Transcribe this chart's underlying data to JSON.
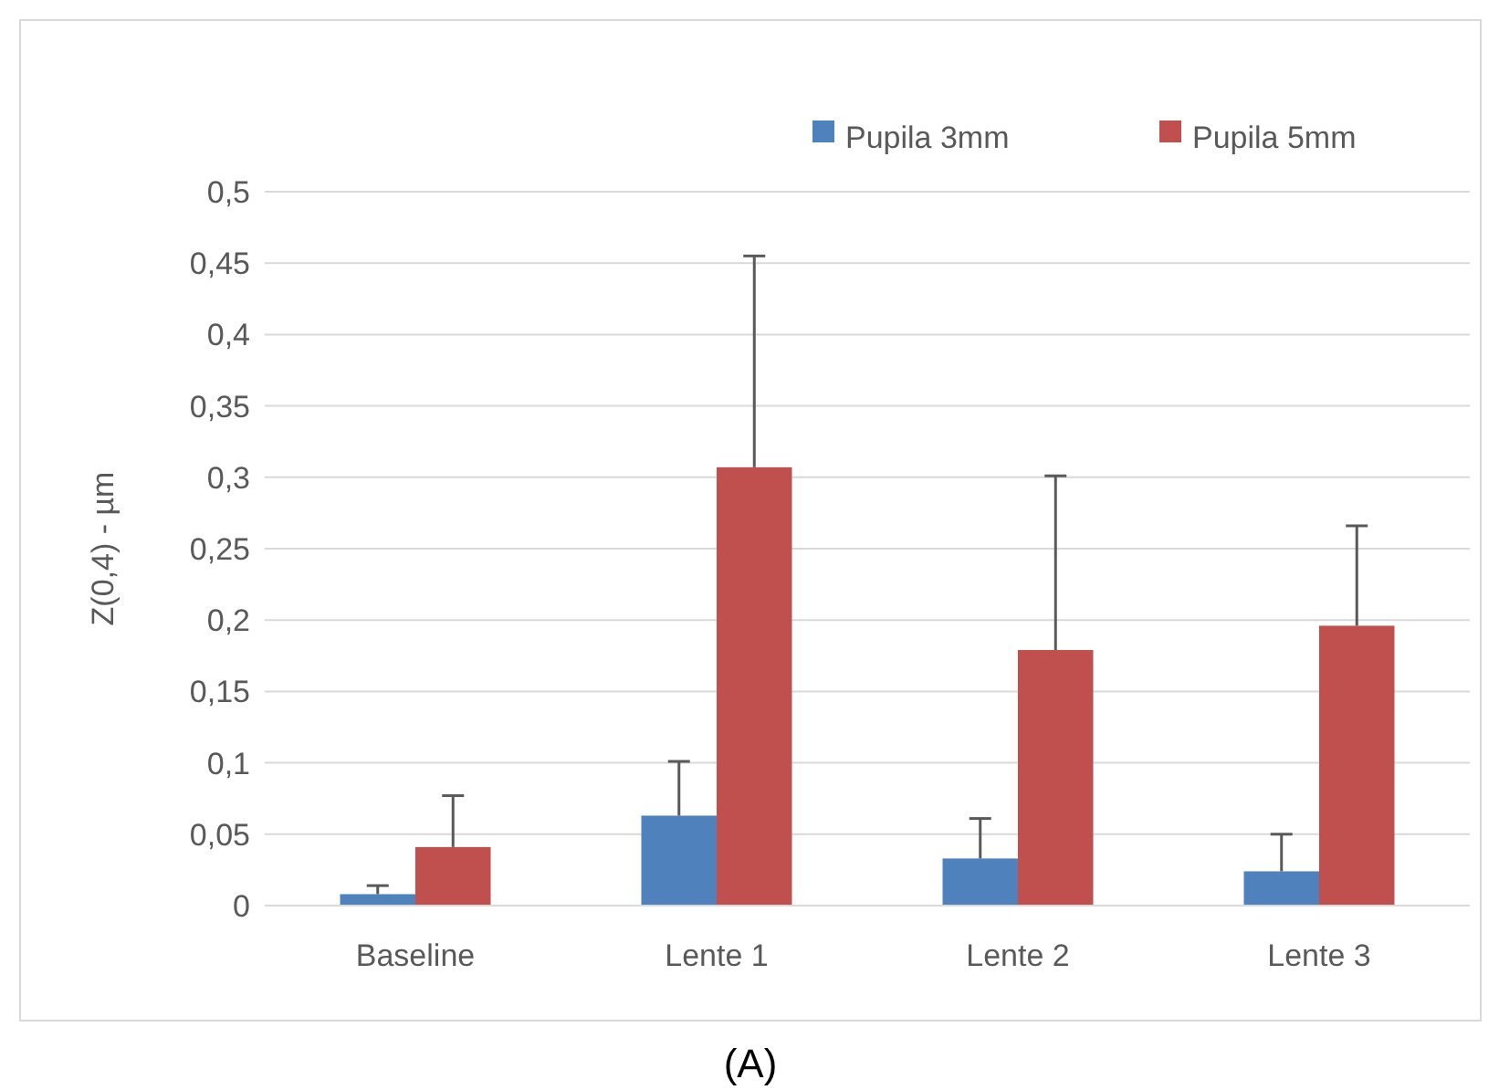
{
  "chart_data": {
    "type": "bar",
    "title": "(A)",
    "ylabel": "Z(0,4) - µm",
    "categories": [
      "Baseline",
      "Lente 1",
      "Lente 2",
      "Lente 3"
    ],
    "series": [
      {
        "name": "Pupila 3mm",
        "color": "#4f81bd",
        "values": [
          0.008,
          0.063,
          0.033,
          0.024
        ],
        "errors": [
          [
            0.008,
            0.014
          ],
          [
            0.063,
            0.101
          ],
          [
            0.033,
            0.061
          ],
          [
            0.024,
            0.05
          ]
        ]
      },
      {
        "name": "Pupila 5mm",
        "color": "#c0504d",
        "values": [
          0.041,
          0.307,
          0.179,
          0.196
        ],
        "errors": [
          [
            0.041,
            0.077
          ],
          [
            0.307,
            0.455
          ],
          [
            0.179,
            0.301
          ],
          [
            0.196,
            0.266
          ]
        ]
      }
    ],
    "ylim": [
      0,
      0.5
    ],
    "yticks": [
      {
        "value": 0,
        "label": "0"
      },
      {
        "value": 0.05,
        "label": "0,05"
      },
      {
        "value": 0.1,
        "label": "0,1"
      },
      {
        "value": 0.15,
        "label": "0,15"
      },
      {
        "value": 0.2,
        "label": "0,2"
      },
      {
        "value": 0.25,
        "label": "0,25"
      },
      {
        "value": 0.3,
        "label": "0,3"
      },
      {
        "value": 0.35,
        "label": "0,35"
      },
      {
        "value": 0.4,
        "label": "0,4"
      },
      {
        "value": 0.45,
        "label": "0,45"
      },
      {
        "value": 0.5,
        "label": "0,5"
      }
    ],
    "grid": "y",
    "legend": "top right"
  }
}
